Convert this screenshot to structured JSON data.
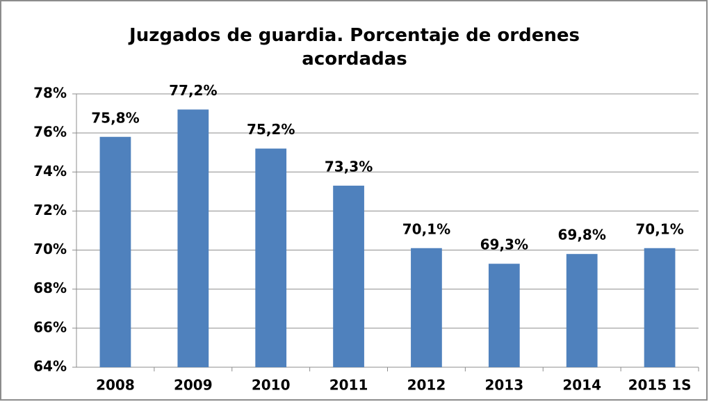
{
  "chart_data": {
    "type": "bar",
    "title": "Juzgados de guardia. Porcentaje de ordenes acordadas",
    "categories": [
      "2008",
      "2009",
      "2010",
      "2011",
      "2012",
      "2013",
      "2014",
      "2015 1S"
    ],
    "values": [
      75.8,
      77.2,
      75.2,
      73.3,
      70.1,
      69.3,
      69.8,
      70.1
    ],
    "value_labels": [
      "75,8%",
      "77,2%",
      "75,2%",
      "73,3%",
      "70,1%",
      "69,3%",
      "69,8%",
      "70,1%"
    ],
    "color": "#4f81bd",
    "ylim": [
      64,
      78
    ],
    "yticks": [
      {
        "value": 64,
        "label": "64%"
      },
      {
        "value": 66,
        "label": "66%"
      },
      {
        "value": 68,
        "label": "68%"
      },
      {
        "value": 70,
        "label": "70%"
      },
      {
        "value": 72,
        "label": "72%"
      },
      {
        "value": 74,
        "label": "74%"
      },
      {
        "value": 76,
        "label": "76%"
      },
      {
        "value": 78,
        "label": "78%"
      }
    ],
    "grid": true
  }
}
